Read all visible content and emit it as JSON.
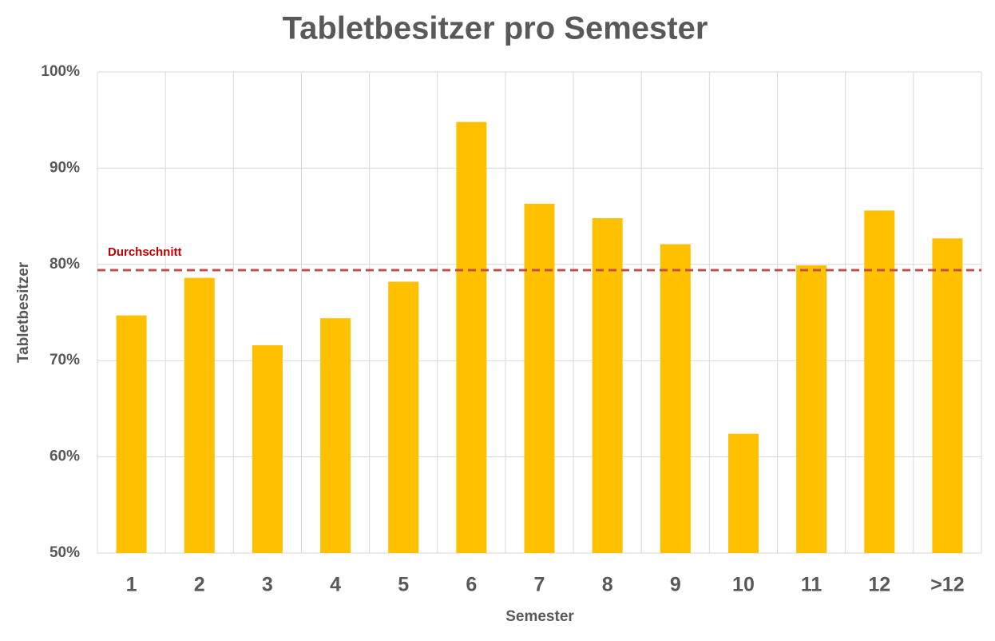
{
  "chart_data": {
    "type": "bar",
    "title": "Tabletbesitzer pro Semester",
    "x_label": "Semester",
    "y_label": "Tabletbesitzer",
    "categories": [
      "1",
      "2",
      "3",
      "4",
      "5",
      "6",
      "7",
      "8",
      "9",
      "10",
      "11",
      "12",
      ">12"
    ],
    "values": [
      74.7,
      78.6,
      71.6,
      74.4,
      78.2,
      94.8,
      86.3,
      84.8,
      82.1,
      62.4,
      79.9,
      85.6,
      82.7
    ],
    "color": "#ffc000",
    "ylim": [
      50,
      100
    ],
    "yticks": [
      {
        "value": 50,
        "label": "50%"
      },
      {
        "value": 60,
        "label": "60%"
      },
      {
        "value": 70,
        "label": "70%"
      },
      {
        "value": 80,
        "label": "80%"
      },
      {
        "value": 90,
        "label": "90%"
      },
      {
        "value": 100,
        "label": "100%"
      }
    ],
    "grid": true,
    "average": {
      "value": 79.4,
      "label": "Durchschnitt",
      "color": "#c0504d"
    }
  }
}
